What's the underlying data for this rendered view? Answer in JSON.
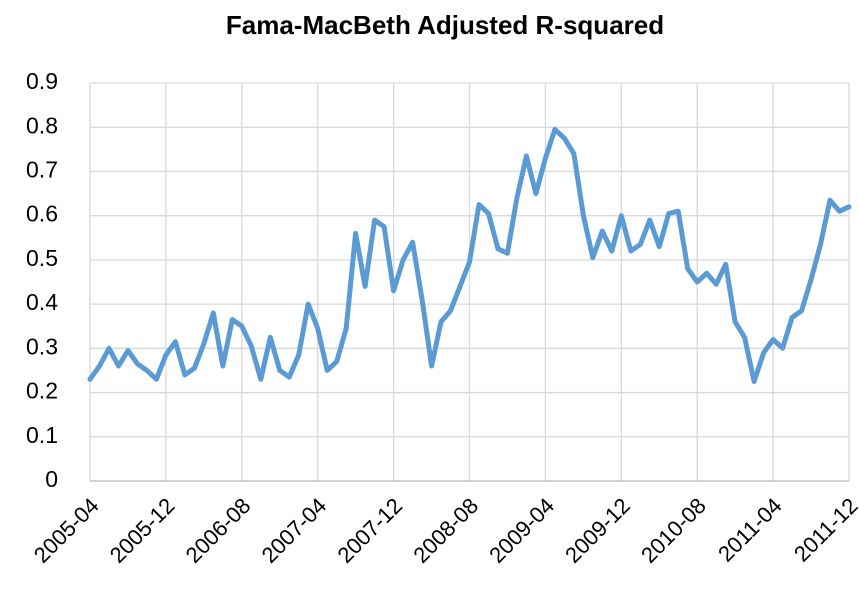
{
  "chart_data": {
    "type": "line",
    "title": "Fama-MacBeth Adjusted R-squared",
    "categories": [
      "2005-04",
      null,
      null,
      null,
      null,
      null,
      null,
      null,
      "2005-12",
      null,
      null,
      null,
      null,
      null,
      null,
      null,
      "2006-08",
      null,
      null,
      null,
      null,
      null,
      null,
      null,
      "2007-04",
      null,
      null,
      null,
      null,
      null,
      null,
      null,
      "2007-12",
      null,
      null,
      null,
      null,
      null,
      null,
      null,
      "2008-08",
      null,
      null,
      null,
      null,
      null,
      null,
      null,
      "2009-04",
      null,
      null,
      null,
      null,
      null,
      null,
      null,
      "2009-12",
      null,
      null,
      null,
      null,
      null,
      null,
      null,
      "2010-08",
      null,
      null,
      null,
      null,
      null,
      null,
      null,
      "2011-04",
      null,
      null,
      null,
      null,
      null,
      null,
      null,
      "2011-12"
    ],
    "series": [
      {
        "color": "#5b9bd5",
        "values": [
          0.23,
          0.26,
          0.3,
          0.26,
          0.295,
          0.265,
          0.25,
          0.23,
          0.285,
          0.315,
          0.24,
          0.255,
          0.31,
          0.38,
          0.26,
          0.365,
          0.35,
          0.305,
          0.23,
          0.325,
          0.25,
          0.235,
          0.285,
          0.4,
          0.345,
          0.25,
          0.27,
          0.345,
          0.56,
          0.44,
          0.59,
          0.575,
          0.43,
          0.5,
          0.54,
          0.41,
          0.26,
          0.36,
          0.385,
          0.44,
          0.495,
          0.625,
          0.605,
          0.525,
          0.515,
          0.64,
          0.735,
          0.65,
          0.73,
          0.795,
          0.775,
          0.74,
          0.6,
          0.505,
          0.565,
          0.52,
          0.6,
          0.52,
          0.535,
          0.59,
          0.53,
          0.605,
          0.61,
          0.48,
          0.45,
          0.47,
          0.445,
          0.49,
          0.36,
          0.325,
          0.225,
          0.29,
          0.32,
          0.3,
          0.37,
          0.385,
          0.455,
          0.535,
          0.635,
          0.61,
          0.62
        ]
      }
    ],
    "ylim": [
      0,
      0.9
    ],
    "yticks": [
      0,
      0.1,
      0.2,
      0.3,
      0.4,
      0.5,
      0.6,
      0.7,
      0.8,
      0.9
    ],
    "grid": true
  }
}
